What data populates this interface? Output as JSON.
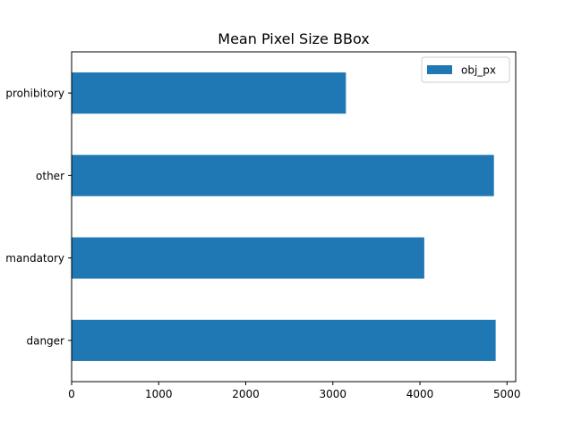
{
  "chart_data": {
    "type": "bar",
    "orientation": "horizontal",
    "title": "Mean Pixel Size BBox",
    "xlabel": "",
    "ylabel": "",
    "categories": [
      "danger",
      "mandatory",
      "other",
      "prohibitory"
    ],
    "series": [
      {
        "name": "obj_px",
        "values": [
          4870,
          4050,
          4850,
          3150
        ],
        "color": "#1f77b4"
      }
    ],
    "xlim": [
      0,
      5100
    ],
    "xticks": [
      0,
      1000,
      2000,
      3000,
      4000,
      5000
    ],
    "xtick_labels": [
      "0",
      "1000",
      "2000",
      "3000",
      "4000",
      "5000"
    ],
    "grid": false,
    "legend_position": "top-right"
  }
}
